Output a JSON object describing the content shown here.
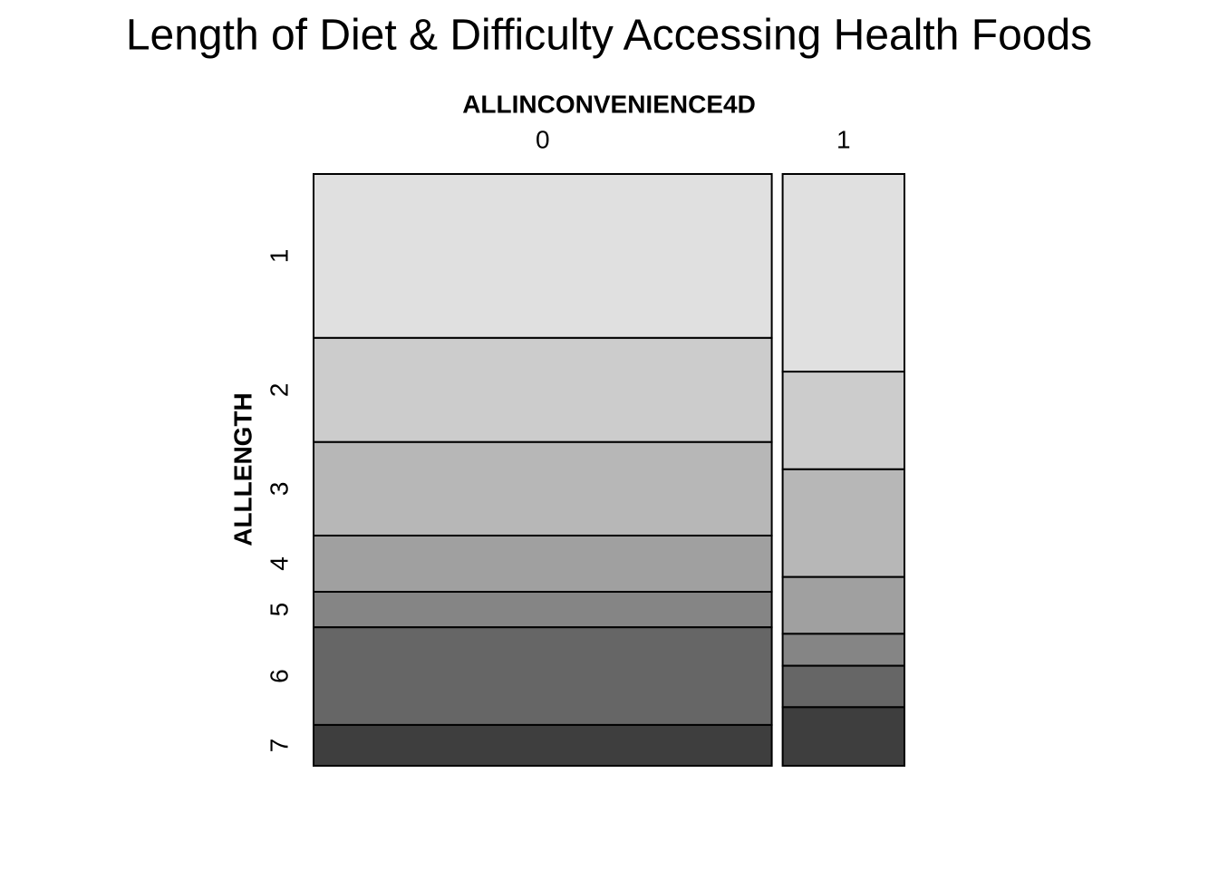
{
  "chart_data": {
    "type": "mosaic",
    "title": "Length of Diet & Difficulty Accessing Health Foods",
    "x_label": "ALLINCONVENIENCE4D",
    "y_label": "ALLLENGTH",
    "categories": [
      "0",
      "1"
    ],
    "column_shares": [
      79,
      21
    ],
    "series": [
      {
        "name": "1",
        "color": "#e0e0e0",
        "values": [
          27.7,
          33.4
        ]
      },
      {
        "name": "2",
        "color": "#cccccc",
        "values": [
          17.6,
          16.5
        ]
      },
      {
        "name": "3",
        "color": "#b7b7b7",
        "values": [
          15.8,
          18.2
        ]
      },
      {
        "name": "4",
        "color": "#a0a0a0",
        "values": [
          9.5,
          9.6
        ]
      },
      {
        "name": "5",
        "color": "#858585",
        "values": [
          6.0,
          5.4
        ]
      },
      {
        "name": "6",
        "color": "#666666",
        "values": [
          16.5,
          7.0
        ]
      },
      {
        "name": "7",
        "color": "#3e3e3e",
        "values": [
          6.9,
          9.9
        ]
      }
    ]
  }
}
